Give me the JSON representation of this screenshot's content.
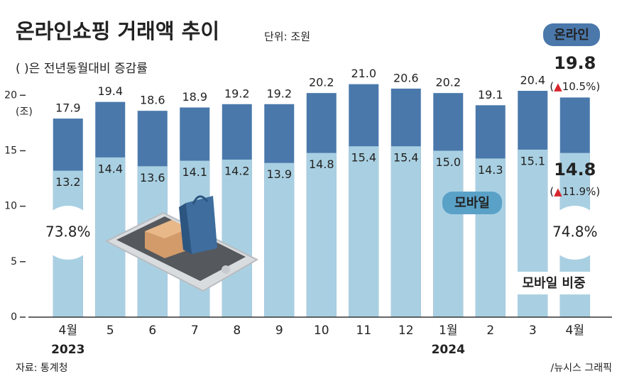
{
  "chart_data": {
    "type": "overlap-bar",
    "title": "온라인쇼핑 거래액 추이",
    "unit": "단위: 조원",
    "subtitle": "( )은 전년동월대비 증감률",
    "y_axis_label": "(조)",
    "categories": [
      "4월",
      "5",
      "6",
      "7",
      "8",
      "9",
      "10",
      "11",
      "12",
      "1월",
      "2",
      "3",
      "4월"
    ],
    "year_labels": [
      "2023",
      null,
      null,
      null,
      null,
      null,
      null,
      null,
      null,
      "2024",
      null,
      null,
      null
    ],
    "series": [
      {
        "name": "온라인",
        "color": "#4a78ab",
        "values": [
          17.9,
          19.4,
          18.6,
          18.9,
          19.2,
          19.2,
          20.2,
          21.0,
          20.6,
          20.2,
          19.1,
          20.4,
          19.8
        ],
        "value_labels": [
          "17.9",
          "19.4",
          "18.6",
          "18.9",
          "19.2",
          "19.2",
          "20.2",
          "21.0",
          "20.6",
          "20.2",
          "19.1",
          "20.4",
          "19.8"
        ],
        "growth_label": "(▲10.5%)"
      },
      {
        "name": "모바일",
        "color": "#a9d0e2",
        "values": [
          13.2,
          14.4,
          13.6,
          14.1,
          14.2,
          13.9,
          14.8,
          15.4,
          15.4,
          15.0,
          14.3,
          15.1,
          14.8
        ],
        "value_labels": [
          "13.2",
          "14.4",
          "13.6",
          "14.1",
          "14.2",
          "13.9",
          "14.8",
          "15.4",
          "15.4",
          "15.0",
          "14.3",
          "15.1",
          "14.8"
        ],
        "growth_label": "(▲11.9%)"
      }
    ],
    "share_legend": "모바일 비중",
    "share_labels": [
      "73.8%",
      "74.8%"
    ],
    "ylim": [
      0,
      22
    ],
    "yticks": [
      0,
      5,
      10,
      15,
      20
    ],
    "source": "자료: 통계청",
    "credit": "/뉴시스 그래픽"
  }
}
